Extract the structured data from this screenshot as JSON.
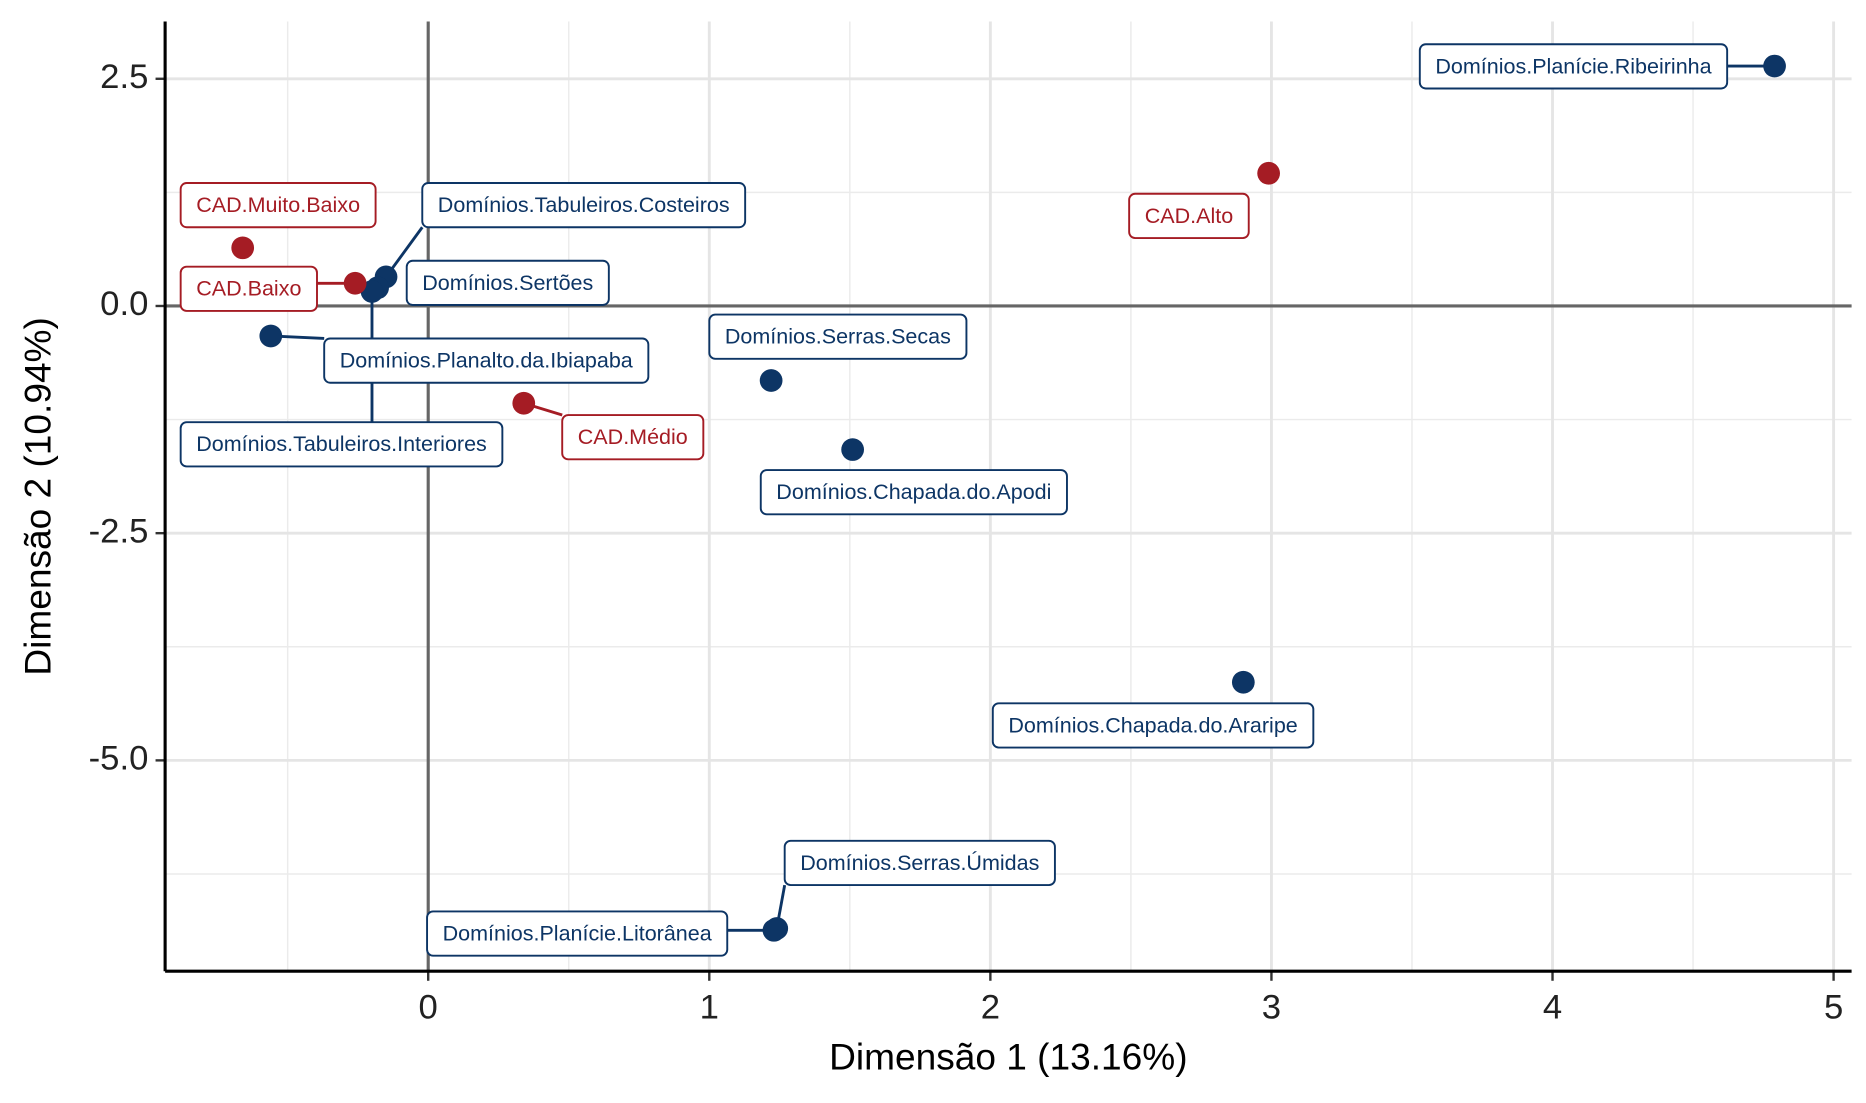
{
  "chart_data": {
    "type": "scatter",
    "x_label": "Dimensão 1 (13.16%)",
    "y_label": "Dimensão 2 (10.94%)",
    "xlim": [
      -0.936,
      5.064
    ],
    "ylim": [
      -7.32,
      3.13
    ],
    "xticks": [
      0,
      1,
      2,
      3,
      4,
      5
    ],
    "yticks": [
      {
        "value": 2.5,
        "label": "2.5"
      },
      {
        "value": 0,
        "label": "0.0"
      },
      {
        "value": -2.5,
        "label": "-2.5"
      },
      {
        "value": -5,
        "label": "-5.0"
      }
    ],
    "xminorticks": [
      -0.5,
      0.5,
      1.5,
      2.5,
      3.5,
      4.5
    ],
    "yminorticks": [
      1.25,
      -1.25,
      -3.75,
      -6.25
    ],
    "hline": 0,
    "vline": 0,
    "grid": true,
    "series": [
      {
        "color": "#0d3565",
        "labels": [
          "Domínios.Planície.Ribeirinha",
          "Domínios.Tabuleiros.Costeiros",
          "Domínios.Sertões",
          "Domínios.Planalto.da.Ibiapaba",
          "Domínios.Tabuleiros.Interiores",
          "Domínios.Serras.Secas",
          "Domínios.Chapada.do.Apodi",
          "Domínios.Chapada.do.Araripe",
          "Domínios.Serras.Úmidas",
          "Domínios.Planície.Litorânea"
        ],
        "x": [
          4.79,
          -0.15,
          -0.18,
          -0.56,
          -0.2,
          1.22,
          1.51,
          2.9,
          1.24,
          1.23
        ],
        "values": [
          2.64,
          0.32,
          0.2,
          -0.33,
          0.16,
          -0.82,
          -1.58,
          -4.14,
          -6.85,
          -6.87
        ]
      },
      {
        "color": "#a51c24",
        "labels": [
          "CAD.Alto",
          "CAD.Muito.Baixo",
          "CAD.Baixo",
          "CAD.Médio"
        ],
        "x": [
          2.99,
          -0.66,
          -0.26,
          0.34
        ],
        "values": [
          1.46,
          0.64,
          0.25,
          -1.07
        ]
      }
    ]
  }
}
